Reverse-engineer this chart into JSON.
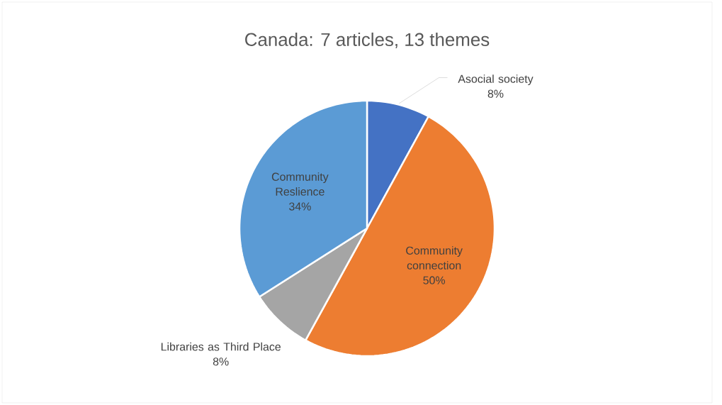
{
  "chart_data": {
    "type": "pie",
    "title": "Canada: 7 articles, 13 themes",
    "categories": [
      "Asocial society",
      "Community connection",
      "Libraries as Third Place",
      "Community Reslience"
    ],
    "values": [
      8,
      50,
      8,
      34
    ],
    "value_labels": [
      "8%",
      "50%",
      "8%",
      "34%"
    ],
    "colors": [
      "#4472c4",
      "#ed7d31",
      "#a5a5a5",
      "#5b9bd5"
    ],
    "legend": false
  }
}
